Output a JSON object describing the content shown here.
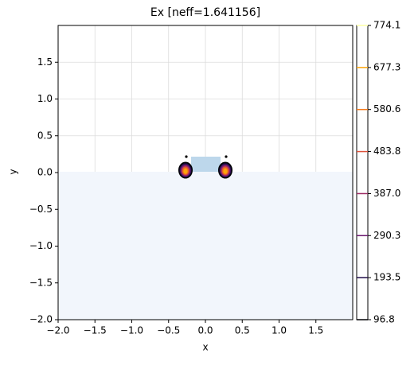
{
  "chart_data": {
    "type": "contour",
    "title": "Ex [neff=1.641156]",
    "xlabel": "x",
    "ylabel": "y",
    "xlim": [
      -2.0,
      2.0
    ],
    "ylim": [
      -2.0,
      2.0
    ],
    "xticks": [
      {
        "value": -2.0,
        "label": "−2.0"
      },
      {
        "value": -1.5,
        "label": "−1.5"
      },
      {
        "value": -1.0,
        "label": "−1.0"
      },
      {
        "value": -0.5,
        "label": "−0.5"
      },
      {
        "value": 0,
        "label": "0.0"
      },
      {
        "value": 0.5,
        "label": "0.5"
      },
      {
        "value": 1.0,
        "label": "1.0"
      },
      {
        "value": 1.5,
        "label": "1.5"
      }
    ],
    "yticks": [
      {
        "value": -2.0,
        "label": "−2.0"
      },
      {
        "value": -1.5,
        "label": "−1.5"
      },
      {
        "value": -1.0,
        "label": "−1.0"
      },
      {
        "value": -0.5,
        "label": "−0.5"
      },
      {
        "value": 0,
        "label": "0.0"
      },
      {
        "value": 0.5,
        "label": "0.5"
      },
      {
        "value": 1.0,
        "label": "1.0"
      },
      {
        "value": 1.5,
        "label": "1.5"
      }
    ],
    "grid": true,
    "colorbar": {
      "clim": [
        96.8,
        774.1
      ],
      "levels": [
        96.8,
        193.5,
        290.3,
        {
          "value": 387.0,
          "label": "387.0"
        },
        483.8,
        580.6,
        677.3,
        774.1
      ],
      "colors": [
        "#000004",
        "#1f0c48",
        "#6a176e",
        "#9c2a63",
        "#dd513a",
        "#f37819",
        "#fca50a",
        "#fcffa4"
      ]
    }
  }
}
